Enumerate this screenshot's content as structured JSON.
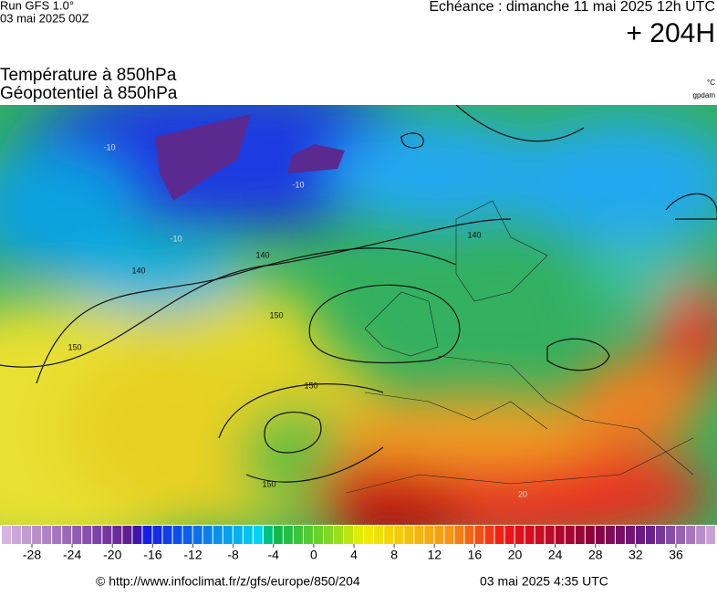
{
  "header": {
    "run": "Run GFS 1.0°",
    "run_date": "03 mai 2025 00Z",
    "valid": "Echéance : dimanche 11 mai 2025 12h UTC",
    "lead": "+ 204H",
    "title_line1": "Température à 850hPa",
    "title_line2": "Géopotentiel à 850hPa",
    "unit_temp": "°C",
    "unit_geo": "gpdam"
  },
  "map": {
    "contour_labels": [
      "-10",
      "-10",
      "-10",
      "140",
      "140",
      "140",
      "150",
      "150",
      "150",
      "150",
      "20"
    ]
  },
  "colorbar": {
    "ticks": [
      -28,
      -24,
      -20,
      -16,
      -12,
      -8,
      -4,
      0,
      4,
      8,
      12,
      16,
      20,
      24,
      28,
      32,
      36
    ]
  },
  "footer": {
    "source": "© http://www.infoclimat.fr/z/gfs/europe/850/204",
    "generated": "03 mai 2025  4:35 UTC"
  }
}
